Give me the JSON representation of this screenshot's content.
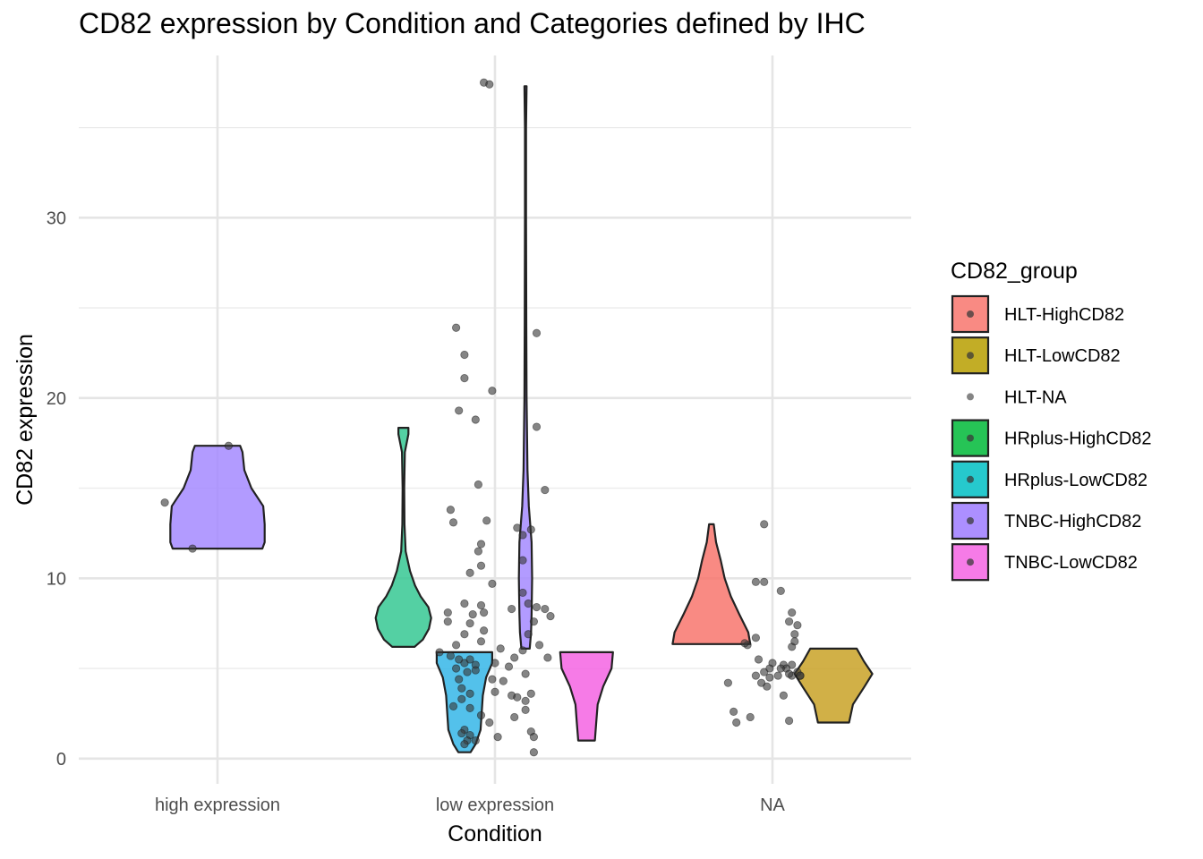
{
  "chart_data": {
    "type": "violin",
    "title": "CD82 expression by Condition and Categories defined by IHC",
    "xlabel": "Condition",
    "ylabel": "CD82 expression",
    "categories": [
      "high expression",
      "low expression",
      "NA"
    ],
    "ylim": [
      -1.4,
      39
    ],
    "yticks": [
      0,
      10,
      20,
      30
    ],
    "grid": true,
    "legend": {
      "title": "CD82_group",
      "placement": "right",
      "entries": [
        {
          "name": "HLT-HighCD82",
          "color": "#F8766D",
          "filled": true
        },
        {
          "name": "HLT-LowCD82",
          "color": "#B79F00",
          "filled": true
        },
        {
          "name": "HLT-NA",
          "color": "#888888",
          "filled": false
        },
        {
          "name": "HRplus-HighCD82",
          "color": "#00BA38",
          "filled": true
        },
        {
          "name": "HRplus-LowCD82",
          "color": "#00BFC4",
          "filled": true
        },
        {
          "name": "TNBC-HighCD82",
          "color": "#9E7BFF",
          "filled": true
        },
        {
          "name": "TNBC-LowCD82",
          "color": "#F564E3",
          "filled": true
        }
      ]
    },
    "violins": [
      {
        "group": "TNBC-HighCD82",
        "condition": "high expression",
        "color": "#A58AFF",
        "offset": 0.0,
        "scale": 0.17,
        "profile": [
          [
            11.65,
            0.95
          ],
          [
            12.0,
            1.0
          ],
          [
            13.0,
            1.0
          ],
          [
            14.0,
            0.97
          ],
          [
            15.0,
            0.72
          ],
          [
            16.0,
            0.57
          ],
          [
            17.0,
            0.53
          ],
          [
            17.35,
            0.48
          ]
        ]
      },
      {
        "group": "HRplus-HighCD82",
        "condition": "low expression",
        "color": "#36C893",
        "offset": -0.33,
        "scale": 0.1,
        "profile": [
          [
            6.2,
            0.4
          ],
          [
            6.6,
            0.7
          ],
          [
            7.2,
            0.92
          ],
          [
            7.8,
            1.0
          ],
          [
            8.4,
            0.9
          ],
          [
            9.0,
            0.62
          ],
          [
            9.6,
            0.42
          ],
          [
            10.4,
            0.24
          ],
          [
            11.5,
            0.08
          ],
          [
            13.0,
            0.04
          ],
          [
            15.0,
            0.03
          ],
          [
            17.0,
            0.05
          ],
          [
            17.6,
            0.13
          ],
          [
            18.0,
            0.18
          ],
          [
            18.35,
            0.18
          ]
        ]
      },
      {
        "group": "HRplus-LowCD82",
        "condition": "low expression",
        "color": "#35B6E8",
        "offset": -0.11,
        "scale": 0.1,
        "profile": [
          [
            0.35,
            0.22
          ],
          [
            0.8,
            0.4
          ],
          [
            1.6,
            0.58
          ],
          [
            2.5,
            0.62
          ],
          [
            3.5,
            0.66
          ],
          [
            4.5,
            0.78
          ],
          [
            5.3,
            1.0
          ],
          [
            5.9,
            1.0
          ]
        ]
      },
      {
        "group": "TNBC-HighCD82",
        "condition": "low expression",
        "color": "#A58AFF",
        "offset": 0.11,
        "scale": 0.1,
        "profile": [
          [
            6.1,
            0.15
          ],
          [
            7.0,
            0.2
          ],
          [
            8.0,
            0.22
          ],
          [
            10.0,
            0.24
          ],
          [
            12.0,
            0.22
          ],
          [
            14.0,
            0.12
          ],
          [
            16.0,
            0.07
          ],
          [
            20.0,
            0.04
          ],
          [
            24.0,
            0.03
          ],
          [
            30.0,
            0.02
          ],
          [
            35.0,
            0.02
          ],
          [
            37.3,
            0.04
          ]
        ]
      },
      {
        "group": "TNBC-LowCD82",
        "condition": "low expression",
        "color": "#F564E3",
        "offset": 0.33,
        "scale": 0.1,
        "profile": [
          [
            1.0,
            0.3
          ],
          [
            2.0,
            0.35
          ],
          [
            3.0,
            0.4
          ],
          [
            4.0,
            0.6
          ],
          [
            5.0,
            0.9
          ],
          [
            5.9,
            0.95
          ]
        ]
      },
      {
        "group": "HLT-HighCD82",
        "condition": "NA",
        "color": "#F8766D",
        "offset": -0.22,
        "scale": 0.14,
        "profile": [
          [
            6.35,
            1.0
          ],
          [
            7.0,
            0.95
          ],
          [
            8.0,
            0.72
          ],
          [
            9.0,
            0.5
          ],
          [
            10.0,
            0.34
          ],
          [
            11.0,
            0.24
          ],
          [
            12.0,
            0.12
          ],
          [
            13.0,
            0.06
          ]
        ]
      },
      {
        "group": "HLT-LowCD82",
        "condition": "NA",
        "color": "#C9A227",
        "offset": 0.22,
        "scale": 0.14,
        "profile": [
          [
            2.0,
            0.4
          ],
          [
            3.0,
            0.5
          ],
          [
            4.0,
            0.8
          ],
          [
            4.7,
            1.0
          ],
          [
            5.4,
            0.78
          ],
          [
            6.1,
            0.6
          ]
        ]
      }
    ],
    "points": [
      {
        "condition": "high expression",
        "values": [
          [
            -0.19,
            14.2
          ],
          [
            -0.09,
            11.65
          ],
          [
            0.04,
            17.35
          ]
        ]
      },
      {
        "condition": "low expression",
        "values": [
          [
            -0.04,
            37.5
          ],
          [
            -0.02,
            37.4
          ],
          [
            0.15,
            23.6
          ],
          [
            -0.14,
            23.9
          ],
          [
            -0.11,
            22.4
          ],
          [
            -0.11,
            21.1
          ],
          [
            -0.01,
            20.4
          ],
          [
            -0.13,
            19.3
          ],
          [
            -0.07,
            18.8
          ],
          [
            0.15,
            18.4
          ],
          [
            -0.06,
            15.2
          ],
          [
            0.18,
            14.9
          ],
          [
            -0.16,
            13.8
          ],
          [
            -0.15,
            13.1
          ],
          [
            -0.03,
            13.2
          ],
          [
            0.08,
            12.8
          ],
          [
            0.13,
            12.7
          ],
          [
            0.1,
            12.4
          ],
          [
            -0.05,
            11.9
          ],
          [
            -0.06,
            11.5
          ],
          [
            0.1,
            11.0
          ],
          [
            -0.05,
            10.7
          ],
          [
            -0.09,
            10.3
          ],
          [
            -0.01,
            9.7
          ],
          [
            -0.11,
            8.6
          ],
          [
            -0.05,
            8.5
          ],
          [
            0.15,
            8.4
          ],
          [
            0.18,
            8.3
          ],
          [
            0.2,
            7.9
          ],
          [
            -0.17,
            8.1
          ],
          [
            -0.08,
            8.0
          ],
          [
            -0.04,
            8.1
          ],
          [
            0.06,
            8.3
          ],
          [
            0.12,
            8.6
          ],
          [
            0.1,
            9.2
          ],
          [
            0.14,
            7.6
          ],
          [
            -0.17,
            7.6
          ],
          [
            -0.09,
            7.5
          ],
          [
            -0.04,
            7.1
          ],
          [
            -0.11,
            6.9
          ],
          [
            0.12,
            6.9
          ],
          [
            0.16,
            6.3
          ],
          [
            -0.14,
            6.3
          ],
          [
            -0.05,
            6.5
          ],
          [
            0.02,
            6.1
          ],
          [
            0.1,
            6.0
          ],
          [
            0.19,
            5.6
          ],
          [
            -0.2,
            5.9
          ],
          [
            -0.16,
            5.7
          ],
          [
            -0.13,
            5.5
          ],
          [
            -0.11,
            5.3
          ],
          [
            -0.09,
            5.5
          ],
          [
            -0.07,
            5.2
          ],
          [
            -0.14,
            5.0
          ],
          [
            0.0,
            5.3
          ],
          [
            0.07,
            5.6
          ],
          [
            0.11,
            4.7
          ],
          [
            -0.13,
            4.4
          ],
          [
            -0.1,
            4.8
          ],
          [
            -0.07,
            4.9
          ],
          [
            -0.01,
            4.4
          ],
          [
            0.03,
            4.3
          ],
          [
            0.05,
            5.1
          ],
          [
            -0.12,
            3.9
          ],
          [
            -0.09,
            3.6
          ],
          [
            -0.12,
            3.3
          ],
          [
            0.0,
            3.7
          ],
          [
            0.06,
            3.5
          ],
          [
            0.08,
            3.4
          ],
          [
            0.13,
            3.6
          ],
          [
            0.11,
            3.2
          ],
          [
            -0.15,
            2.9
          ],
          [
            -0.09,
            2.8
          ],
          [
            -0.05,
            2.4
          ],
          [
            0.07,
            2.3
          ],
          [
            0.11,
            2.7
          ],
          [
            -0.02,
            2.0
          ],
          [
            -0.11,
            1.6
          ],
          [
            -0.09,
            1.3
          ],
          [
            -0.12,
            1.4
          ],
          [
            0.13,
            1.5
          ],
          [
            -0.1,
            1.0
          ],
          [
            -0.07,
            1.0
          ],
          [
            0.01,
            1.2
          ],
          [
            0.14,
            1.2
          ],
          [
            -0.11,
            0.8
          ],
          [
            0.14,
            0.35
          ]
        ]
      },
      {
        "condition": "NA",
        "values": [
          [
            -0.16,
            4.2
          ],
          [
            -0.14,
            2.6
          ],
          [
            -0.13,
            2.0
          ],
          [
            -0.08,
            2.3
          ],
          [
            -0.06,
            4.6
          ],
          [
            -0.03,
            4.8
          ],
          [
            -0.06,
            9.8
          ],
          [
            -0.03,
            9.8
          ],
          [
            -0.03,
            13.0
          ],
          [
            0.03,
            9.3
          ],
          [
            0.07,
            6.2
          ],
          [
            0.07,
            4.6
          ],
          [
            0.06,
            2.1
          ],
          [
            0.04,
            3.5
          ],
          [
            0.09,
            7.4
          ],
          [
            0.08,
            6.9
          ],
          [
            0.08,
            6.5
          ],
          [
            0.07,
            5.2
          ],
          [
            0.1,
            4.6
          ],
          [
            -0.09,
            6.3
          ],
          [
            -0.1,
            6.4
          ],
          [
            -0.06,
            6.7
          ],
          [
            0.0,
            5.3
          ],
          [
            0.02,
            4.6
          ],
          [
            0.04,
            5.2
          ],
          [
            0.05,
            5.0
          ],
          [
            -0.02,
            4.0
          ],
          [
            -0.01,
            5.0
          ],
          [
            0.06,
            4.7
          ],
          [
            0.06,
            7.6
          ],
          [
            0.09,
            4.8
          ],
          [
            -0.01,
            4.5
          ],
          [
            0.07,
            8.1
          ],
          [
            0.1,
            4.6
          ],
          [
            -0.05,
            5.5
          ],
          [
            -0.04,
            4.2
          ],
          [
            0.03,
            5.0
          ]
        ]
      }
    ]
  }
}
